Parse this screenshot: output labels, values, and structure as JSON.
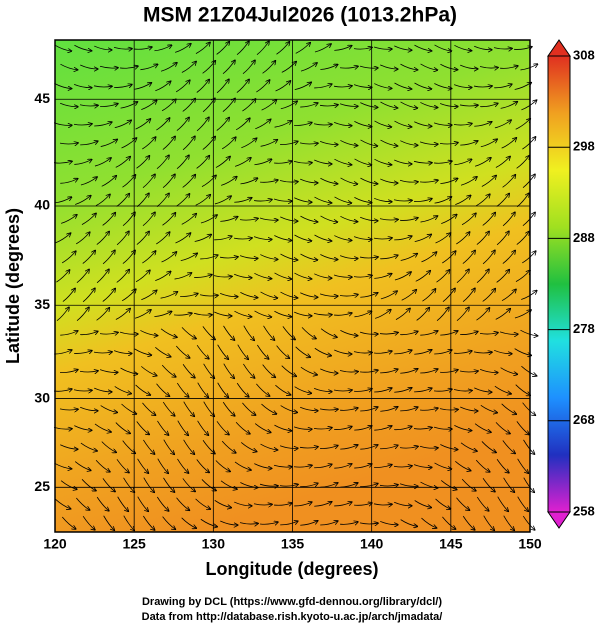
{
  "chart_data": {
    "type": "map",
    "title": "MSM 21Z04Jul2026 (1013.2hPa)",
    "x_label": "Longitude (degrees)",
    "y_label": "Latitude  (degrees)",
    "projection": "mercator",
    "xlim": [
      120,
      150
    ],
    "xticks": [
      120,
      125,
      130,
      135,
      140,
      145,
      150
    ],
    "ylim": [
      22.4,
      47.6
    ],
    "yticks": [
      25,
      30,
      35,
      40,
      45
    ],
    "grid": true,
    "colorbar": {
      "clim": [
        258,
        308
      ],
      "ticks": [
        258,
        268,
        278,
        288,
        298,
        308
      ],
      "colors": [
        "#e020d0",
        "#2030c0",
        "#1e90ff",
        "#20e0e0",
        "#20c040",
        "#a0e020",
        "#f0f020",
        "#f0a020",
        "#e03020"
      ]
    },
    "credits": [
      "Drawing by DCL (https://www.gfd-dennou.org/library/dcl/)",
      "Data from http://database.rish.kyoto-u.ac.jp/arch/jmadata/"
    ]
  }
}
